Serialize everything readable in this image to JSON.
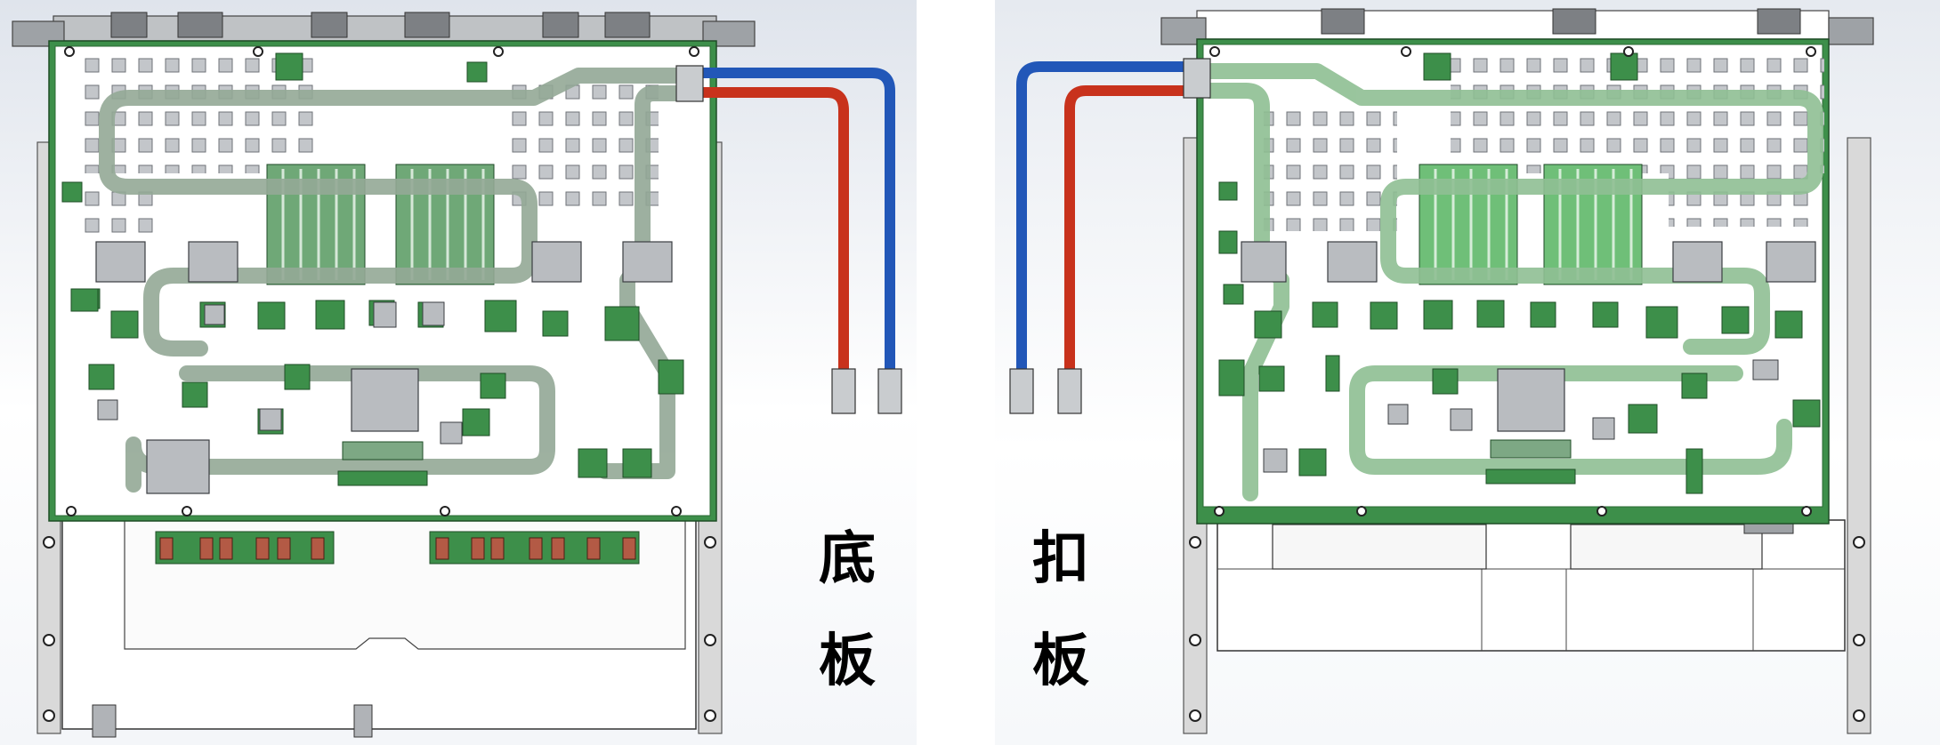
{
  "labels": {
    "left": [
      "底",
      "板"
    ],
    "right": [
      "扣",
      "板"
    ]
  },
  "colors": {
    "pcb_green": "#3d8f4a",
    "pcb_light": "#8fbf93",
    "pipe": "#93a896",
    "chip": "#b9bcc0",
    "metal": "#d9d9d9",
    "hose_red": "#c8321c",
    "hose_blue": "#2257b8",
    "copper": "#b35a45",
    "background_left": "#e6eaf0"
  }
}
